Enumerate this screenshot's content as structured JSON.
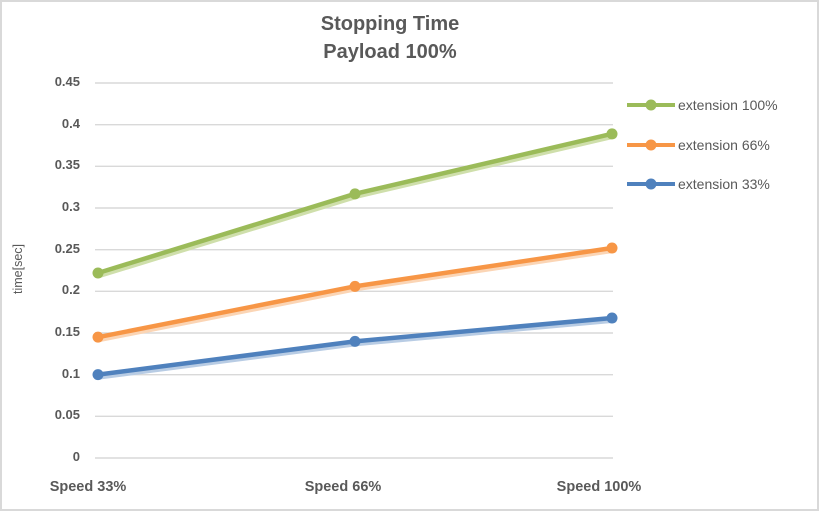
{
  "chart_data": {
    "type": "line",
    "title": "Stopping Time",
    "subtitle": "Payload 100%",
    "ylabel": "time[sec]",
    "categories": [
      "Speed 33%",
      "Speed 66%",
      "Speed 100%"
    ],
    "series": [
      {
        "name": "extension 100%",
        "color": "#9BBB59",
        "shadow_color": "#CFDFAB",
        "values": [
          0.222,
          0.317,
          0.389
        ]
      },
      {
        "name": "extension 66%",
        "color": "#F79646",
        "shadow_color": "#FBD5B5",
        "values": [
          0.145,
          0.206,
          0.252
        ]
      },
      {
        "name": "extension 33%",
        "color": "#4F81BD",
        "shadow_color": "#B8CCE4",
        "values": [
          0.1,
          0.14,
          0.168
        ]
      }
    ],
    "ylim": [
      0,
      0.45
    ],
    "ytick_step": 0.05,
    "yticks": [
      "0",
      "0.05",
      "0.1",
      "0.15",
      "0.2",
      "0.25",
      "0.3",
      "0.35",
      "0.4",
      "0.45"
    ],
    "grid": true,
    "legend_position": "right",
    "colors": {
      "text": "#595959",
      "grid": "#D9D9D9",
      "background": "#FFFFFF",
      "border": "#D9D9D9"
    }
  }
}
